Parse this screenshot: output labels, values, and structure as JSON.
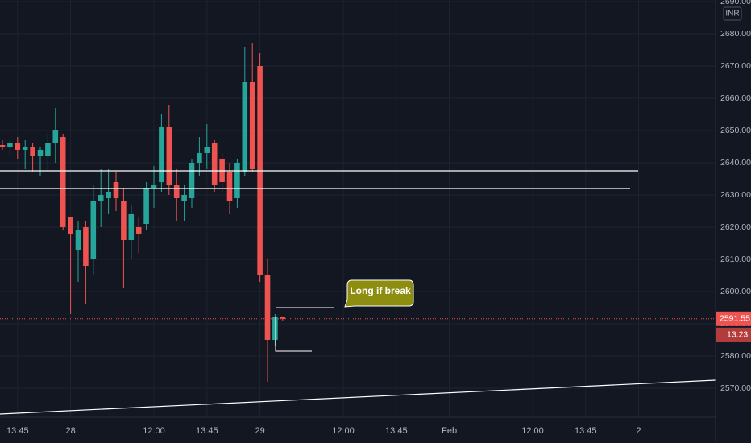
{
  "chart_data": {
    "type": "candlestick",
    "currency": "INR",
    "annotation": "Long if break",
    "last_price": 2591.55,
    "countdown": "13:23",
    "up_color": "#26a69a",
    "down_color": "#ef5350",
    "grid": true,
    "x": [
      0,
      1,
      2,
      3,
      4,
      5,
      6,
      7,
      8,
      9,
      10,
      11,
      12,
      13,
      14,
      15,
      16,
      17,
      18,
      19,
      20,
      21,
      22,
      23,
      24,
      25,
      26,
      27,
      28,
      29,
      30,
      31,
      32,
      33,
      34,
      35,
      36,
      37
    ],
    "open": [
      2645.5,
      2645,
      2646,
      2644,
      2645,
      2642,
      2642,
      2646,
      2648,
      2623,
      2613,
      2620,
      2610,
      2628,
      2629,
      2634,
      2628,
      2616,
      2620,
      2621,
      2632,
      2634,
      2651,
      2633,
      2628,
      2629,
      2640,
      2643,
      2646,
      2641,
      2637,
      2629,
      2637,
      2665,
      2670,
      2605,
      2585,
      2592
    ],
    "high": [
      2647,
      2647,
      2648,
      2647,
      2646,
      2645,
      2649,
      2657,
      2649,
      2623,
      2622,
      2622,
      2633,
      2638,
      2638,
      2637,
      2632,
      2627,
      2623,
      2634,
      2639,
      2655,
      2658,
      2638,
      2633,
      2641,
      2648,
      2652,
      2647,
      2643,
      2640,
      2641,
      2676,
      2677,
      2674,
      2610,
      2593,
      2592.3
    ],
    "low": [
      2644,
      2642,
      2641,
      2638,
      2637,
      2636,
      2637,
      2640,
      2619,
      2593,
      2603,
      2596,
      2605,
      2620,
      2624,
      2625,
      2601,
      2610,
      2612,
      2619,
      2626,
      2631,
      2630,
      2622,
      2622,
      2626,
      2636,
      2638,
      2631,
      2631,
      2624,
      2626,
      2636,
      2637,
      2603,
      2572,
      2583,
      2591
    ],
    "close": [
      2645,
      2646,
      2644,
      2645,
      2642,
      2644,
      2646,
      2650,
      2620,
      2618,
      2619,
      2608,
      2628,
      2630,
      2631,
      2629,
      2616,
      2624,
      2618,
      2632,
      2633,
      2651,
      2633,
      2629,
      2630,
      2640,
      2643,
      2645,
      2633,
      2634,
      2628,
      2640,
      2665,
      2638,
      2605,
      2585,
      2592,
      2591.55
    ],
    "xlim": [
      -0.32,
      94.15
    ],
    "xticks": [
      {
        "value": 2,
        "label": "13:45"
      },
      {
        "value": 9,
        "label": "28"
      },
      {
        "value": 20,
        "label": "12:00"
      },
      {
        "value": 27,
        "label": "13:45"
      },
      {
        "value": 34,
        "label": "29"
      },
      {
        "value": 45,
        "label": "12:00"
      },
      {
        "value": 52,
        "label": "13:45"
      },
      {
        "value": 59,
        "label": "Feb"
      },
      {
        "value": 70,
        "label": "12:00"
      },
      {
        "value": 77,
        "label": "13:45"
      },
      {
        "value": 84,
        "label": "2"
      }
    ],
    "ylim": [
      2561,
      2690.5
    ],
    "yticks": [
      {
        "value": 2570,
        "label": "2570.00"
      },
      {
        "value": 2580,
        "label": "2580.00"
      },
      {
        "value": 2590,
        "label": "2590.00"
      },
      {
        "value": 2600,
        "label": "2600.00"
      },
      {
        "value": 2610,
        "label": "2610.00"
      },
      {
        "value": 2620,
        "label": "2620.00"
      },
      {
        "value": 2630,
        "label": "2630.00"
      },
      {
        "value": 2640,
        "label": "2640.00"
      },
      {
        "value": 2650,
        "label": "2650.00"
      },
      {
        "value": 2660,
        "label": "2660.00"
      },
      {
        "value": 2670,
        "label": "2670.00"
      },
      {
        "value": 2680,
        "label": "2680.00"
      },
      {
        "value": 2690,
        "label": "2690.00"
      }
    ]
  }
}
